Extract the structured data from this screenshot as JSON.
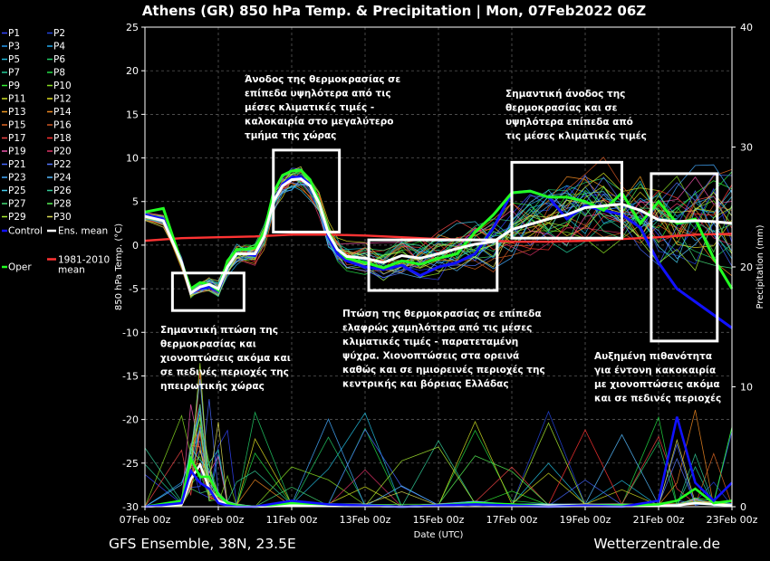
{
  "header": {
    "title": "Athens  (GR)  850 hPa Temp. & Precipitation | Mon, 07Feb2022 06Z"
  },
  "footer": {
    "left": "GFS Ensemble, 38N, 23.5E",
    "right": "Wetterzentrale.de"
  },
  "chart_data": {
    "type": "line",
    "title": "Athens  (GR)  850 hPa Temp. & Precipitation | Mon, 07Feb2022 06Z",
    "xlabel": "Date (UTC)",
    "ylabel": "850 hPa Temp. (°C)",
    "y2label": "Precipitation (mm)",
    "ylim": [
      -30,
      25
    ],
    "y2lim": [
      0,
      40
    ],
    "yticks": [
      "25",
      "20",
      "15",
      "10",
      "5",
      "0",
      "-5",
      "-10",
      "-15",
      "-20",
      "-25",
      "-30"
    ],
    "y2ticks": [
      "40",
      "30",
      "20",
      "10",
      "0"
    ],
    "xticks": [
      "07Feb 00z",
      "09Feb 00z",
      "11Feb 00z",
      "13Feb 00z",
      "15Feb 00z",
      "17Feb 00z",
      "19Feb 00z",
      "21Feb 00z",
      "23Feb 00z"
    ],
    "xlim_days": [
      0,
      16
    ],
    "grid": true,
    "legend_placement": "left",
    "legend": [
      {
        "name": "P1",
        "color": "#3344ff"
      },
      {
        "name": "P2",
        "color": "#2244dd"
      },
      {
        "name": "P3",
        "color": "#2299ee"
      },
      {
        "name": "P4",
        "color": "#22aaee"
      },
      {
        "name": "P5",
        "color": "#22bbdd"
      },
      {
        "name": "P6",
        "color": "#22cc66"
      },
      {
        "name": "P7",
        "color": "#22cc99"
      },
      {
        "name": "P8",
        "color": "#22dd44"
      },
      {
        "name": "P9",
        "color": "#33ee33"
      },
      {
        "name": "P10",
        "color": "#88dd22"
      },
      {
        "name": "P11",
        "color": "#ccdd22"
      },
      {
        "name": "P12",
        "color": "#dddd22"
      },
      {
        "name": "P13",
        "color": "#ee9922"
      },
      {
        "name": "P14",
        "color": "#ee8822"
      },
      {
        "name": "P15",
        "color": "#dd6622"
      },
      {
        "name": "P16",
        "color": "#cc5522"
      },
      {
        "name": "P17",
        "color": "#ee4444"
      },
      {
        "name": "P18",
        "color": "#ff3333"
      },
      {
        "name": "P19",
        "color": "#ee55aa"
      },
      {
        "name": "P20",
        "color": "#dd3366"
      },
      {
        "name": "P21",
        "color": "#4466ff"
      },
      {
        "name": "P22",
        "color": "#5577ff"
      },
      {
        "name": "P23",
        "color": "#44aaff"
      },
      {
        "name": "P24",
        "color": "#55bbff"
      },
      {
        "name": "P25",
        "color": "#44ccee"
      },
      {
        "name": "P26",
        "color": "#33cc99"
      },
      {
        "name": "P27",
        "color": "#44dd77"
      },
      {
        "name": "P28",
        "color": "#55ee55"
      },
      {
        "name": "P29",
        "color": "#aaee33"
      },
      {
        "name": "P30",
        "color": "#dddd55"
      },
      {
        "name": "Control",
        "color": "#1111ff"
      },
      {
        "name": "Ens. mean",
        "color": "#ffffff"
      },
      {
        "name": "Oper",
        "color": "#22ff22"
      },
      {
        "name": "1981-2010\nmean",
        "color": "#ff3333"
      }
    ],
    "series": [
      {
        "name": "Ens. mean",
        "color": "#ffffff",
        "x": [
          0,
          0.5,
          1,
          1.25,
          1.5,
          1.75,
          2,
          2.25,
          2.5,
          2.75,
          3,
          3.25,
          3.5,
          3.75,
          4,
          4.25,
          4.5,
          4.75,
          5,
          5.25,
          5.5,
          6,
          6.5,
          7,
          7.5,
          8,
          8.5,
          9,
          9.5,
          10,
          10.5,
          11,
          11.5,
          12,
          12.5,
          13,
          13.5,
          14,
          14.5,
          15,
          15.5,
          16
        ],
        "y": [
          3.3,
          2.8,
          -2,
          -5.5,
          -4.8,
          -4.5,
          -5,
          -2.5,
          -1,
          -1,
          -1,
          1,
          5,
          6.8,
          7.5,
          7.6,
          6.8,
          4.8,
          1.3,
          -0.5,
          -1.3,
          -1.5,
          -2.0,
          -1.2,
          -1.5,
          -1.0,
          -0.4,
          0.1,
          0.4,
          1.8,
          2.4,
          3.0,
          3.5,
          4.3,
          4.5,
          4.7,
          4.0,
          2.9,
          2.7,
          2.8,
          2.7,
          2.5
        ]
      },
      {
        "name": "Oper",
        "color": "#22ff22",
        "x": [
          0,
          0.5,
          1,
          1.25,
          1.5,
          1.75,
          2,
          2.25,
          2.5,
          2.75,
          3,
          3.25,
          3.5,
          3.75,
          4,
          4.25,
          4.5,
          4.75,
          5,
          5.25,
          5.5,
          6,
          6.5,
          7,
          7.5,
          8,
          8.5,
          9,
          9.5,
          10,
          10.5,
          11,
          11.5,
          12,
          12.5,
          13,
          13.5,
          14,
          14.5,
          15,
          15.5,
          16
        ],
        "y": [
          3.8,
          4.2,
          -2,
          -5.0,
          -4.3,
          -4.5,
          -5.2,
          -1.8,
          -0.5,
          -0.5,
          -0.3,
          1.5,
          6,
          8,
          8.5,
          8.6,
          7.5,
          5,
          1.5,
          -0.5,
          -1.5,
          -2.0,
          -2.6,
          -1.8,
          -2.2,
          -1.5,
          -1.0,
          1.5,
          3.5,
          6.0,
          6.2,
          5.5,
          5.5,
          5.0,
          4.0,
          6.0,
          2.5,
          5.0,
          2.5,
          3.0,
          -1.5,
          -5.0
        ]
      },
      {
        "name": "Control",
        "color": "#1111ff",
        "x": [
          0,
          0.5,
          1,
          1.25,
          1.5,
          1.75,
          2,
          2.25,
          2.5,
          2.75,
          3,
          3.25,
          3.5,
          3.75,
          4,
          4.25,
          4.5,
          4.75,
          5,
          5.25,
          5.5,
          6,
          6.5,
          7,
          7.5,
          8,
          8.5,
          9,
          9.5,
          10,
          10.5,
          11,
          11.5,
          12,
          12.5,
          13,
          13.5,
          14,
          14.5,
          15,
          15.5,
          16
        ],
        "y": [
          3.5,
          3.0,
          -2,
          -5.5,
          -5.0,
          -4.8,
          -5.3,
          -2.5,
          -1,
          -1,
          -1.2,
          1,
          5,
          7,
          7.8,
          7.8,
          7,
          5,
          1,
          -1,
          -1.8,
          -2.5,
          -2.8,
          -2.3,
          -3.5,
          -2.5,
          -2.0,
          -1.0,
          2.0,
          6.0,
          6.2,
          5.5,
          3.0,
          4.5,
          4.0,
          3.5,
          2.0,
          -2.0,
          -5.0,
          -6.5,
          -8.0,
          -9.5
        ]
      },
      {
        "name": "1981-2010\nmean",
        "color": "#ff3333",
        "x": [
          0,
          1,
          2,
          3,
          4,
          5,
          6,
          7,
          8,
          9,
          10,
          11,
          12,
          13,
          14,
          15,
          16
        ],
        "y": [
          0.5,
          0.8,
          0.9,
          1.0,
          1.2,
          1.2,
          1.1,
          0.9,
          0.7,
          0.6,
          0.4,
          0.4,
          0.5,
          0.7,
          0.9,
          1.2,
          1.3
        ]
      }
    ],
    "precipitation_series": [
      {
        "name": "Ens. mean",
        "color": "#ffffff",
        "x": [
          0,
          1,
          1.25,
          1.5,
          1.75,
          2,
          2.25,
          2.5,
          3,
          4,
          5,
          6,
          7,
          8,
          9,
          10,
          11,
          12,
          13,
          14,
          14.5,
          15,
          15.5,
          16
        ],
        "y": [
          0,
          0.2,
          2.3,
          3.5,
          1.5,
          0.5,
          0.2,
          0.1,
          0,
          0.1,
          0.1,
          0.1,
          0,
          0.1,
          0.2,
          0.1,
          0.1,
          0.1,
          0.1,
          0.1,
          0.1,
          0.3,
          0.2,
          0.1
        ]
      },
      {
        "name": "Oper",
        "color": "#22ff22",
        "x": [
          0,
          1,
          1.25,
          1.5,
          1.75,
          2,
          2.25,
          2.5,
          3,
          4,
          5,
          6,
          7,
          8,
          9,
          10,
          11,
          12,
          13,
          14,
          14.5,
          15,
          15.5,
          16
        ],
        "y": [
          0,
          0.5,
          4.0,
          2.5,
          2.5,
          1.0,
          0.3,
          0.1,
          0,
          0.3,
          0.2,
          0.1,
          0,
          0.1,
          0.3,
          0.2,
          0,
          0.1,
          0.1,
          0.2,
          0.5,
          1.5,
          0.3,
          0.5
        ]
      },
      {
        "name": "Control",
        "color": "#1111ff",
        "x": [
          0,
          1,
          1.25,
          1.5,
          1.75,
          2,
          2.25,
          2.5,
          3,
          4,
          5,
          6,
          7,
          8,
          9,
          10,
          11,
          12,
          13,
          14,
          14.5,
          15,
          15.5,
          16
        ],
        "y": [
          0,
          0.3,
          3.0,
          2.0,
          1.5,
          0.3,
          0.1,
          0,
          0,
          0.5,
          0.2,
          0.1,
          0,
          0.1,
          0.2,
          0.1,
          0,
          0.1,
          0,
          0.5,
          7.5,
          2.0,
          0.5,
          2.0
        ]
      }
    ]
  },
  "annotations": [
    {
      "id": "ann-upper-left",
      "lines": [
        "Άνοδος της θερμοκρασίας σε",
        "επίπεδα υψηλότερα από τις",
        "μέσες κλιματικές τιμές -",
        "καλοκαιρία στο μεγαλύτερο",
        "τμήμα της χώρας"
      ]
    },
    {
      "id": "ann-upper-right",
      "lines": [
        "Σημαντική άνοδος της",
        "θερμοκρασίας και σε",
        "υψηλότερα επίπεδα από",
        "τις μέσες κλιματικές τιμές"
      ]
    },
    {
      "id": "ann-lower-left",
      "lines": [
        "Σημαντική πτώση της",
        "θερμοκρασίας και",
        "χιονοπτώσεις ακόμα και",
        "σε πεδινές περιοχές της",
        "ηπειρωτικής χώρας"
      ]
    },
    {
      "id": "ann-middle",
      "lines": [
        "Πτώση της θερμοκρασίας σε επίπεδα",
        "ελαφρώς χαμηλότερα από τις μέσες",
        "κλιματικές τιμές - παρατεταμένη",
        "ψύχρα. Χιονοπτώσεις στα ορεινά",
        "καθώς και σε ημιορεινές περιοχές της",
        "κεντρικής και βόρειας Ελλάδας"
      ]
    },
    {
      "id": "ann-lower-right",
      "lines": [
        "Αυξημένη πιθανότητα",
        "για έντονη κακοκαιρία",
        "με χιονοπτώσεις ακόμα",
        "και σε πεδινές περιοχές"
      ]
    }
  ]
}
